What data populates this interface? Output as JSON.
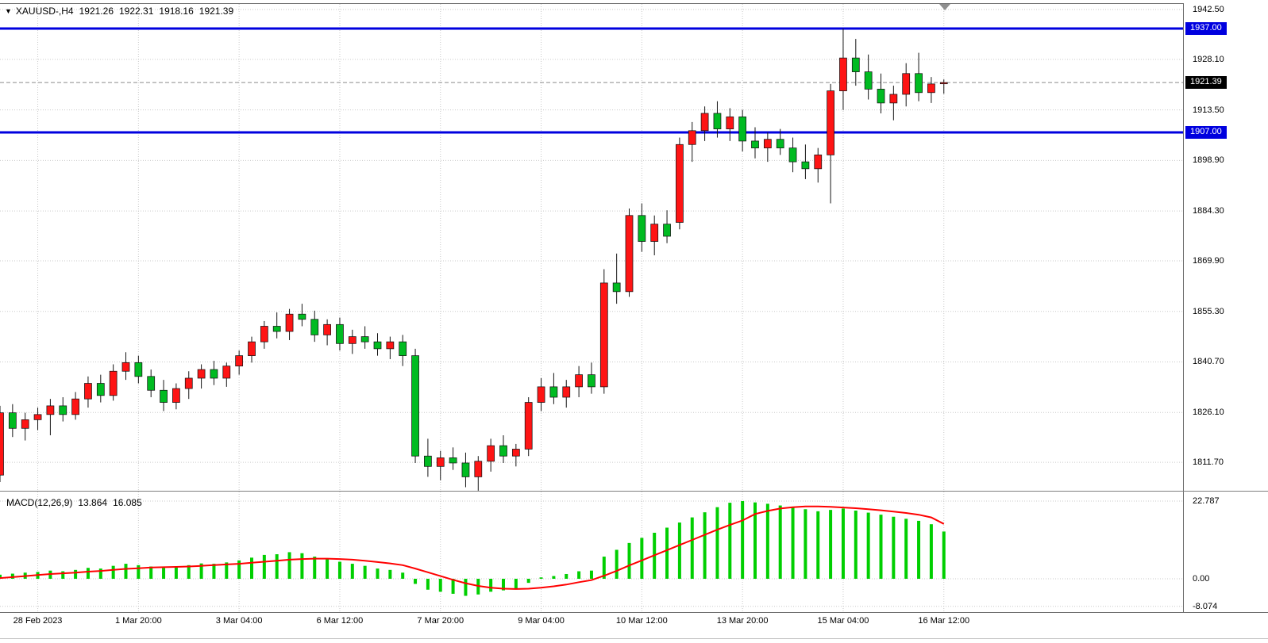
{
  "header": {
    "dropdown_icon": "▼",
    "symbol_timeframe": "XAUUSD-,H4",
    "open": "1921.26",
    "high": "1922.31",
    "low": "1918.16",
    "close": "1921.39"
  },
  "indicator": {
    "label": "MACD(12,26,9)",
    "main_value": "13.864",
    "signal_value": "16.085"
  },
  "bid_price": 1921.39,
  "levels": [
    {
      "label": "1937",
      "price": 1937.0,
      "color": "#0000df"
    },
    {
      "label": "1907",
      "price": 1907.0,
      "color": "#0000df"
    }
  ],
  "price_axis": {
    "labels": [
      {
        "text": "1942.50",
        "price": 1942.5
      },
      {
        "text": "1928.10",
        "price": 1928.1
      },
      {
        "text": "1913.50",
        "price": 1913.5
      },
      {
        "text": "1898.90",
        "price": 1898.9
      },
      {
        "text": "1884.30",
        "price": 1884.3
      },
      {
        "text": "1869.90",
        "price": 1869.9
      },
      {
        "text": "1855.30",
        "price": 1855.3
      },
      {
        "text": "1840.70",
        "price": 1840.7
      },
      {
        "text": "1826.10",
        "price": 1826.1
      },
      {
        "text": "1811.70",
        "price": 1811.7
      }
    ],
    "tags": [
      {
        "text": "1937.00",
        "price": 1937.0,
        "bg": "#0000df"
      },
      {
        "text": "1921.39",
        "price": 1921.39,
        "bg": "#000000"
      },
      {
        "text": "1907.00",
        "price": 1907.0,
        "bg": "#0000df"
      }
    ]
  },
  "macd_axis": {
    "labels": [
      {
        "text": "22.787",
        "value": 22.787
      },
      {
        "text": "0.00",
        "value": 0
      },
      {
        "text": "-8.074",
        "value": -8.074
      }
    ]
  },
  "time_axis": {
    "labels": [
      {
        "text": "28 Feb 2023",
        "index": 3
      },
      {
        "text": "1 Mar 20:00",
        "index": 11
      },
      {
        "text": "3 Mar 04:00",
        "index": 19
      },
      {
        "text": "6 Mar 12:00",
        "index": 27
      },
      {
        "text": "7 Mar 20:00",
        "index": 35
      },
      {
        "text": "9 Mar 04:00",
        "index": 43
      },
      {
        "text": "10 Mar 12:00",
        "index": 51
      },
      {
        "text": "13 Mar 20:00",
        "index": 59
      },
      {
        "text": "15 Mar 04:00",
        "index": 67
      },
      {
        "text": "16 Mar 12:00",
        "index": 75
      }
    ]
  },
  "colors": {
    "bull": "#fe1414",
    "bear": "#00bb21",
    "wick": "#151515",
    "macd_bar": "#00cf00",
    "signal": "#ff0000",
    "grid": "#c9c9c9",
    "bid_line": "#8a8a8a",
    "level_blue": "#0000df",
    "tag_black": "#000000",
    "axis_text": "#000000"
  },
  "chart_data": {
    "type": "candlestick",
    "title": "XAUUSD- H4 with MACD(12,26,9)",
    "symbol": "XAUUSD-",
    "timeframe": "H4",
    "ylim_price": [
      1804,
      1944
    ],
    "ylim_macd": [
      -8.074,
      22.787
    ],
    "grid": true,
    "ohlc": [
      [
        "28 Feb 00:00",
        1808.0,
        1828.0,
        1806.0,
        1826.0
      ],
      [
        "28 Feb 04:00",
        1826.0,
        1828.5,
        1819.0,
        1821.5
      ],
      [
        "28 Feb 08:00",
        1821.5,
        1826.0,
        1818.0,
        1824.0
      ],
      [
        "28 Feb 12:00",
        1824.0,
        1827.5,
        1821.0,
        1825.5
      ],
      [
        "28 Feb 16:00",
        1825.5,
        1830.0,
        1819.5,
        1828.0
      ],
      [
        "28 Feb 20:00",
        1828.0,
        1830.5,
        1823.5,
        1825.5
      ],
      [
        "1 Mar 00:00",
        1825.5,
        1832.0,
        1824.0,
        1830.0
      ],
      [
        "1 Mar 04:00",
        1830.0,
        1836.5,
        1827.5,
        1834.5
      ],
      [
        "1 Mar 08:00",
        1834.5,
        1837.0,
        1829.0,
        1831.0
      ],
      [
        "1 Mar 12:00",
        1831.0,
        1840.0,
        1829.5,
        1838.0
      ],
      [
        "1 Mar 16:00",
        1838.0,
        1843.5,
        1835.5,
        1840.5
      ],
      [
        "1 Mar 20:00",
        1840.5,
        1842.5,
        1834.5,
        1836.5
      ],
      [
        "2 Mar 00:00",
        1836.5,
        1838.5,
        1830.5,
        1832.5
      ],
      [
        "2 Mar 04:00",
        1832.5,
        1835.5,
        1826.5,
        1829.0
      ],
      [
        "2 Mar 08:00",
        1829.0,
        1834.5,
        1827.0,
        1833.0
      ],
      [
        "2 Mar 12:00",
        1833.0,
        1838.0,
        1830.0,
        1836.0
      ],
      [
        "2 Mar 16:00",
        1836.0,
        1840.0,
        1833.0,
        1838.5
      ],
      [
        "2 Mar 20:00",
        1838.5,
        1841.0,
        1834.0,
        1836.0
      ],
      [
        "3 Mar 00:00",
        1836.0,
        1840.5,
        1833.5,
        1839.5
      ],
      [
        "3 Mar 04:00",
        1839.5,
        1844.0,
        1837.0,
        1842.5
      ],
      [
        "3 Mar 08:00",
        1842.5,
        1848.0,
        1840.5,
        1846.5
      ],
      [
        "3 Mar 12:00",
        1846.5,
        1852.5,
        1844.5,
        1851.0
      ],
      [
        "3 Mar 16:00",
        1851.0,
        1855.0,
        1847.5,
        1849.5
      ],
      [
        "3 Mar 20:00",
        1849.5,
        1856.0,
        1847.0,
        1854.5
      ],
      [
        "6 Mar 00:00",
        1854.5,
        1857.5,
        1851.0,
        1853.0
      ],
      [
        "6 Mar 04:00",
        1853.0,
        1855.5,
        1846.5,
        1848.5
      ],
      [
        "6 Mar 08:00",
        1848.5,
        1853.0,
        1845.5,
        1851.5
      ],
      [
        "6 Mar 12:00",
        1851.5,
        1853.5,
        1844.0,
        1846.0
      ],
      [
        "6 Mar 16:00",
        1846.0,
        1850.0,
        1843.0,
        1848.0
      ],
      [
        "6 Mar 20:00",
        1848.0,
        1851.0,
        1844.5,
        1846.5
      ],
      [
        "7 Mar 00:00",
        1846.5,
        1849.0,
        1842.5,
        1844.5
      ],
      [
        "7 Mar 04:00",
        1844.5,
        1848.0,
        1841.5,
        1846.5
      ],
      [
        "7 Mar 08:00",
        1846.5,
        1848.5,
        1839.5,
        1842.5
      ],
      [
        "7 Mar 12:00",
        1842.5,
        1844.5,
        1811.5,
        1813.5
      ],
      [
        "7 Mar 16:00",
        1813.5,
        1818.5,
        1807.5,
        1810.5
      ],
      [
        "7 Mar 20:00",
        1810.5,
        1815.0,
        1806.5,
        1813.0
      ],
      [
        "8 Mar 00:00",
        1813.0,
        1816.0,
        1809.5,
        1811.5
      ],
      [
        "8 Mar 04:00",
        1811.5,
        1814.5,
        1804.5,
        1807.5
      ],
      [
        "8 Mar 08:00",
        1807.5,
        1813.5,
        1803.5,
        1812.0
      ],
      [
        "8 Mar 12:00",
        1812.0,
        1818.5,
        1809.0,
        1816.5
      ],
      [
        "8 Mar 16:00",
        1816.5,
        1819.5,
        1811.5,
        1813.5
      ],
      [
        "8 Mar 20:00",
        1813.5,
        1817.0,
        1810.5,
        1815.5
      ],
      [
        "9 Mar 00:00",
        1815.5,
        1830.5,
        1813.5,
        1829.0
      ],
      [
        "9 Mar 04:00",
        1829.0,
        1836.0,
        1826.5,
        1833.5
      ],
      [
        "9 Mar 08:00",
        1833.5,
        1837.5,
        1828.5,
        1830.5
      ],
      [
        "9 Mar 12:00",
        1830.5,
        1835.5,
        1827.5,
        1833.5
      ],
      [
        "9 Mar 16:00",
        1833.5,
        1839.5,
        1830.5,
        1837.0
      ],
      [
        "9 Mar 20:00",
        1837.0,
        1840.5,
        1831.5,
        1833.5
      ],
      [
        "10 Mar 00:00",
        1833.5,
        1867.5,
        1831.5,
        1863.5
      ],
      [
        "10 Mar 04:00",
        1863.5,
        1872.0,
        1857.5,
        1861.0
      ],
      [
        "10 Mar 08:00",
        1861.0,
        1885.0,
        1859.5,
        1883.0
      ],
      [
        "10 Mar 12:00",
        1883.0,
        1886.5,
        1872.5,
        1875.5
      ],
      [
        "10 Mar 16:00",
        1875.5,
        1883.0,
        1871.5,
        1880.5
      ],
      [
        "10 Mar 20:00",
        1880.5,
        1884.5,
        1875.0,
        1877.0
      ],
      [
        "13 Mar 00:00",
        1881.0,
        1905.5,
        1879.0,
        1903.5
      ],
      [
        "13 Mar 04:00",
        1903.5,
        1910.0,
        1898.5,
        1907.5
      ],
      [
        "13 Mar 08:00",
        1907.5,
        1914.5,
        1904.5,
        1912.5
      ],
      [
        "13 Mar 12:00",
        1912.5,
        1916.0,
        1905.5,
        1908.0
      ],
      [
        "13 Mar 16:00",
        1908.0,
        1914.0,
        1904.5,
        1911.5
      ],
      [
        "13 Mar 20:00",
        1911.5,
        1913.5,
        1901.5,
        1904.5
      ],
      [
        "14 Mar 00:00",
        1904.5,
        1908.5,
        1899.5,
        1902.5
      ],
      [
        "14 Mar 04:00",
        1902.5,
        1907.0,
        1898.5,
        1905.0
      ],
      [
        "14 Mar 08:00",
        1905.0,
        1908.0,
        1900.5,
        1902.5
      ],
      [
        "14 Mar 12:00",
        1902.5,
        1905.5,
        1895.5,
        1898.5
      ],
      [
        "14 Mar 16:00",
        1898.5,
        1903.5,
        1893.5,
        1896.5
      ],
      [
        "14 Mar 20:00",
        1896.5,
        1902.5,
        1892.5,
        1900.5
      ],
      [
        "15 Mar 00:00",
        1900.5,
        1921.0,
        1886.5,
        1919.0
      ],
      [
        "15 Mar 04:00",
        1919.0,
        1937.0,
        1913.5,
        1928.5
      ],
      [
        "15 Mar 08:00",
        1928.5,
        1934.0,
        1920.5,
        1924.5
      ],
      [
        "15 Mar 12:00",
        1924.5,
        1929.5,
        1916.5,
        1919.5
      ],
      [
        "15 Mar 16:00",
        1919.5,
        1924.0,
        1912.5,
        1915.5
      ],
      [
        "15 Mar 20:00",
        1915.5,
        1920.5,
        1910.5,
        1918.0
      ],
      [
        "16 Mar 00:00",
        1918.0,
        1927.0,
        1914.5,
        1924.0
      ],
      [
        "16 Mar 04:00",
        1924.0,
        1930.0,
        1916.0,
        1918.5
      ],
      [
        "16 Mar 08:00",
        1918.5,
        1923.0,
        1915.5,
        1921.0
      ],
      [
        "16 Mar 12:00",
        1921.26,
        1922.31,
        1918.16,
        1921.39
      ]
    ],
    "macd": {
      "histogram": [
        1.2,
        1.5,
        1.8,
        2.0,
        2.4,
        2.2,
        2.6,
        3.2,
        3.0,
        3.8,
        4.4,
        4.0,
        3.6,
        3.2,
        3.5,
        4.0,
        4.5,
        4.4,
        4.8,
        5.4,
        6.2,
        7.0,
        7.2,
        7.8,
        7.5,
        6.5,
        6.0,
        5.0,
        4.4,
        3.8,
        3.0,
        2.6,
        1.8,
        -1.5,
        -3.2,
        -3.8,
        -4.4,
        -5.0,
        -4.6,
        -3.8,
        -3.4,
        -2.8,
        -1.2,
        0.4,
        0.8,
        1.4,
        2.2,
        2.4,
        6.5,
        8.5,
        10.5,
        12.0,
        13.5,
        15.0,
        16.5,
        18.0,
        19.5,
        21.0,
        22.3,
        22.787,
        22.4,
        22.0,
        21.5,
        21.0,
        20.4,
        19.8,
        20.2,
        20.6,
        20.0,
        19.4,
        18.8,
        18.2,
        17.6,
        17.0,
        16.0,
        13.864
      ],
      "signal": [
        0.2,
        0.5,
        0.8,
        1.1,
        1.4,
        1.6,
        1.8,
        2.1,
        2.3,
        2.6,
        2.9,
        3.1,
        3.3,
        3.4,
        3.5,
        3.6,
        3.8,
        4.0,
        4.2,
        4.4,
        4.7,
        5.0,
        5.3,
        5.6,
        5.8,
        5.9,
        5.9,
        5.8,
        5.6,
        5.3,
        4.9,
        4.5,
        4.0,
        3.0,
        1.9,
        0.8,
        -0.3,
        -1.3,
        -2.1,
        -2.6,
        -2.9,
        -3.0,
        -2.9,
        -2.6,
        -2.2,
        -1.7,
        -1.0,
        -0.4,
        0.9,
        2.3,
        3.9,
        5.4,
        6.9,
        8.4,
        9.9,
        11.4,
        12.9,
        14.4,
        15.8,
        17.1,
        19.0,
        19.9,
        20.6,
        21.0,
        21.2,
        21.2,
        21.1,
        20.9,
        20.7,
        20.4,
        20.1,
        19.7,
        19.3,
        18.8,
        18.0,
        16.085
      ]
    }
  }
}
